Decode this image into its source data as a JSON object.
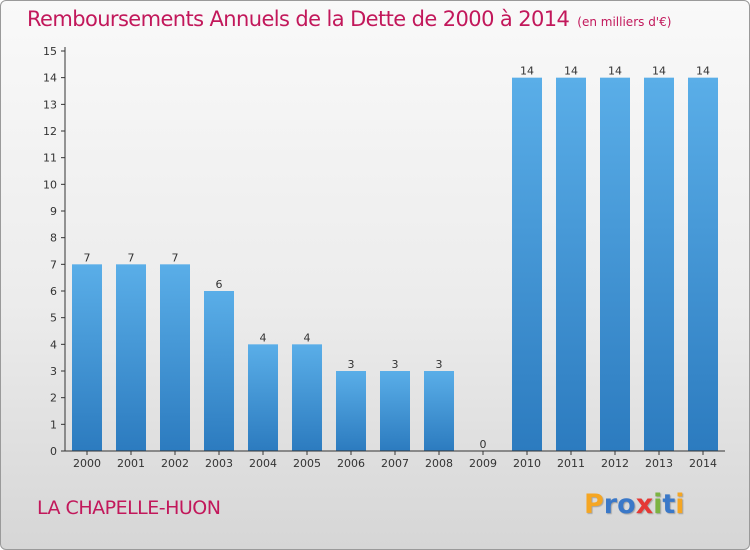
{
  "header": {
    "title": "Remboursements Annuels de la Dette de 2000 à 2014",
    "unit": "(en milliers d'€)"
  },
  "footer": {
    "place": "LA CHAPELLE-HUON"
  },
  "logo": {
    "text": "Proxiti",
    "letters": [
      {
        "char": "P",
        "color": "#f5a623"
      },
      {
        "char": "r",
        "color": "#3a78c8"
      },
      {
        "char": "o",
        "color": "#3a78c8"
      },
      {
        "char": "x",
        "color": "#e53935"
      },
      {
        "char": "i",
        "color": "#7cb342"
      },
      {
        "char": "t",
        "color": "#3a78c8"
      },
      {
        "char": "i",
        "color": "#f5a623"
      }
    ]
  },
  "colors": {
    "title": "#c2185b",
    "bar_light": "#5aaee8",
    "bar_dark": "#2c7bbf"
  },
  "chart_data": {
    "type": "bar",
    "title": "Remboursements Annuels de la Dette de 2000 à 2014",
    "xlabel": "",
    "ylabel": "",
    "ylim": [
      0,
      15
    ],
    "yticks": [
      0,
      1,
      2,
      3,
      4,
      5,
      6,
      7,
      8,
      9,
      10,
      11,
      12,
      13,
      14,
      15
    ],
    "categories": [
      "2000",
      "2001",
      "2002",
      "2003",
      "2004",
      "2005",
      "2006",
      "2007",
      "2008",
      "2009",
      "2010",
      "2011",
      "2012",
      "2013",
      "2014"
    ],
    "values": [
      7,
      7,
      7,
      6,
      4,
      4,
      3,
      3,
      3,
      0,
      14,
      14,
      14,
      14,
      14
    ],
    "data_labels": [
      "7",
      "7",
      "7",
      "6",
      "4",
      "4",
      "3",
      "3",
      "3",
      "0",
      "14",
      "14",
      "14",
      "14",
      "14"
    ],
    "grid": false,
    "legend": "none"
  }
}
